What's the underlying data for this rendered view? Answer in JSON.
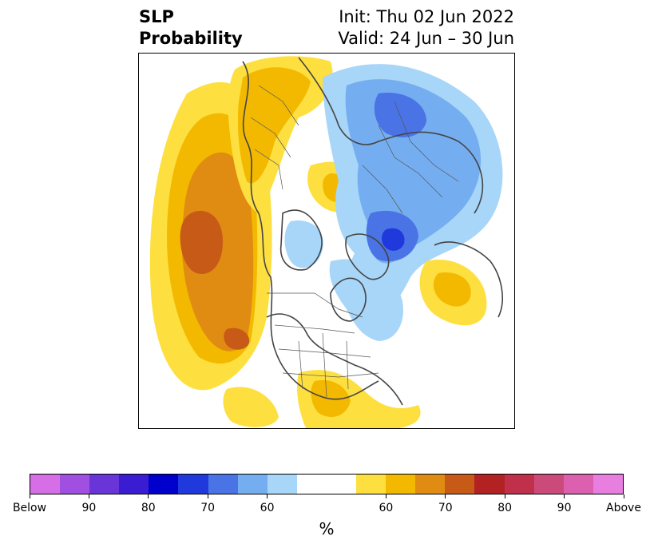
{
  "title": {
    "left_line1": "SLP",
    "left_line2": "Probability",
    "right_line1": "Init: Thu 02 Jun 2022",
    "right_line2": "Valid: 24 Jun – 30 Jun"
  },
  "colorbar": {
    "colors": [
      "#d66fe5",
      "#a04fe0",
      "#6a35d8",
      "#3a1dd2",
      "#0000cc",
      "#2039dc",
      "#4a73e6",
      "#75aef0",
      "#a8d6f8",
      "#ffffff",
      "#ffffff",
      "#fde040",
      "#f3b900",
      "#e08c12",
      "#c85a18",
      "#b22222",
      "#c0304a",
      "#cc4a7a",
      "#dc5fb0",
      "#e77ee0"
    ],
    "tick_labels": [
      "Below",
      "90",
      "80",
      "70",
      "60",
      "60",
      "70",
      "80",
      "90",
      "Above"
    ],
    "unit": "%"
  },
  "map": {
    "legend_colors": {
      "yellow": "#fde040",
      "gold": "#f3b900",
      "orange": "#e08c12",
      "dark_orange": "#c85a18",
      "light_blue": "#a8d6f8",
      "mid_blue": "#75aef0",
      "blue": "#4a73e6",
      "deep_blue": "#2039dc"
    }
  }
}
